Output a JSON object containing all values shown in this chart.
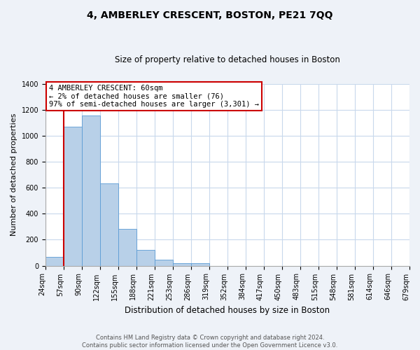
{
  "title": "4, AMBERLEY CRESCENT, BOSTON, PE21 7QQ",
  "subtitle": "Size of property relative to detached houses in Boston",
  "xlabel": "Distribution of detached houses by size in Boston",
  "ylabel": "Number of detached properties",
  "bar_values": [
    65,
    1070,
    1155,
    635,
    285,
    120,
    48,
    20,
    20,
    0,
    0,
    0,
    0,
    0,
    0,
    0,
    0,
    0,
    0,
    0
  ],
  "bin_edges": [
    24,
    57,
    90,
    122,
    155,
    188,
    221,
    253,
    286,
    319,
    352,
    384,
    417,
    450,
    483,
    515,
    548,
    581,
    614,
    646,
    679
  ],
  "bin_labels": [
    "24sqm",
    "57sqm",
    "90sqm",
    "122sqm",
    "155sqm",
    "188sqm",
    "221sqm",
    "253sqm",
    "286sqm",
    "319sqm",
    "352sqm",
    "384sqm",
    "417sqm",
    "450sqm",
    "483sqm",
    "515sqm",
    "548sqm",
    "581sqm",
    "614sqm",
    "646sqm",
    "679sqm"
  ],
  "bar_color": "#b8d0e8",
  "bar_edge_color": "#5b9bd5",
  "vline_color": "#cc0000",
  "vline_x_index": 1,
  "annotation_line1": "4 AMBERLEY CRESCENT: 60sqm",
  "annotation_line2": "← 2% of detached houses are smaller (76)",
  "annotation_line3": "97% of semi-detached houses are larger (3,301) →",
  "annotation_box_color": "#ffffff",
  "annotation_box_edge": "#cc0000",
  "ylim": [
    0,
    1400
  ],
  "yticks": [
    0,
    200,
    400,
    600,
    800,
    1000,
    1200,
    1400
  ],
  "footnote_line1": "Contains HM Land Registry data © Crown copyright and database right 2024.",
  "footnote_line2": "Contains public sector information licensed under the Open Government Licence v3.0.",
  "bg_color": "#eef2f8",
  "plot_bg_color": "#ffffff",
  "grid_color": "#c8d8ec",
  "title_fontsize": 10,
  "subtitle_fontsize": 8.5,
  "xlabel_fontsize": 8.5,
  "ylabel_fontsize": 8,
  "tick_fontsize": 7,
  "annotation_fontsize": 7.5,
  "footnote_fontsize": 6
}
